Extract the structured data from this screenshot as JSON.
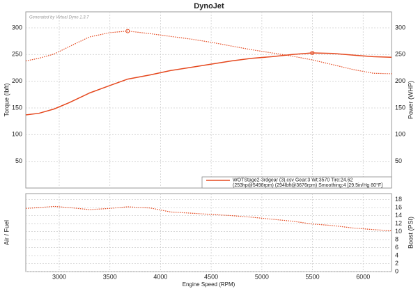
{
  "chart_data": [
    {
      "type": "line",
      "title": "DynoJet",
      "watermark": "Generated by Virtual Dyno 1.3.7",
      "ylabel": "Torque (lbft)",
      "y2label": "Power (WHP)",
      "x": [
        2670,
        2800,
        2950,
        3100,
        3300,
        3500,
        3676,
        3900,
        4100,
        4300,
        4500,
        4700,
        4900,
        5100,
        5300,
        5498,
        5700,
        5900,
        6100,
        6280
      ],
      "xlim": [
        2670,
        6280
      ],
      "ylim": [
        0,
        330
      ],
      "yticks": [
        50,
        100,
        150,
        200,
        250,
        300
      ],
      "y2lim": [
        0,
        330
      ],
      "y2ticks": [
        50,
        100,
        150,
        200,
        250,
        300
      ],
      "grid": true,
      "legend_text": [
        "WOTStage2-3rdgear (3).csv Gear:3 Wt:3570 Tire:24.62",
        "(253hp@5498rpm) (294lbft@3676rpm) Smoothing:4 [29.5in/Hg 80°F]"
      ],
      "series": [
        {
          "color": "#e5481e",
          "style": "dotted",
          "peak": 6,
          "values": [
            238,
            243,
            251,
            265,
            283,
            291,
            294,
            289,
            284,
            279,
            273,
            266,
            259,
            253,
            247,
            240,
            231,
            222,
            215,
            214
          ]
        },
        {
          "color": "#e5481e",
          "style": "solid",
          "axis": "y2",
          "peak": 15,
          "values": [
            137,
            140,
            148,
            160,
            178,
            192,
            204,
            212,
            220,
            226,
            232,
            238,
            243,
            246,
            250,
            253,
            252,
            249,
            246,
            245
          ]
        }
      ]
    },
    {
      "type": "line",
      "xlabel": "Engine Speed (RPM)",
      "ylabel": "Air / Fuel",
      "y2label": "Boost (PSI)",
      "x": [
        2670,
        2800,
        2950,
        3100,
        3300,
        3500,
        3676,
        3900,
        4100,
        4300,
        4500,
        4700,
        4900,
        5100,
        5300,
        5498,
        5700,
        5900,
        6100,
        6280
      ],
      "xlim": [
        2670,
        6280
      ],
      "xticks": [
        3000,
        3500,
        4000,
        4500,
        5000,
        5500,
        6000
      ],
      "y2lim": [
        0,
        19.5
      ],
      "y2ticks": [
        0,
        2,
        4,
        6,
        8,
        10,
        12,
        14,
        16,
        18
      ],
      "grid": true,
      "series": [
        {
          "color": "#e5481e",
          "style": "dotted",
          "axis": "y2",
          "values": [
            15.8,
            16.0,
            16.3,
            16.0,
            15.5,
            15.8,
            16.2,
            15.9,
            14.9,
            14.6,
            14.3,
            14.0,
            13.6,
            13.1,
            12.6,
            11.9,
            11.5,
            10.9,
            10.5,
            10.2
          ]
        }
      ]
    }
  ]
}
